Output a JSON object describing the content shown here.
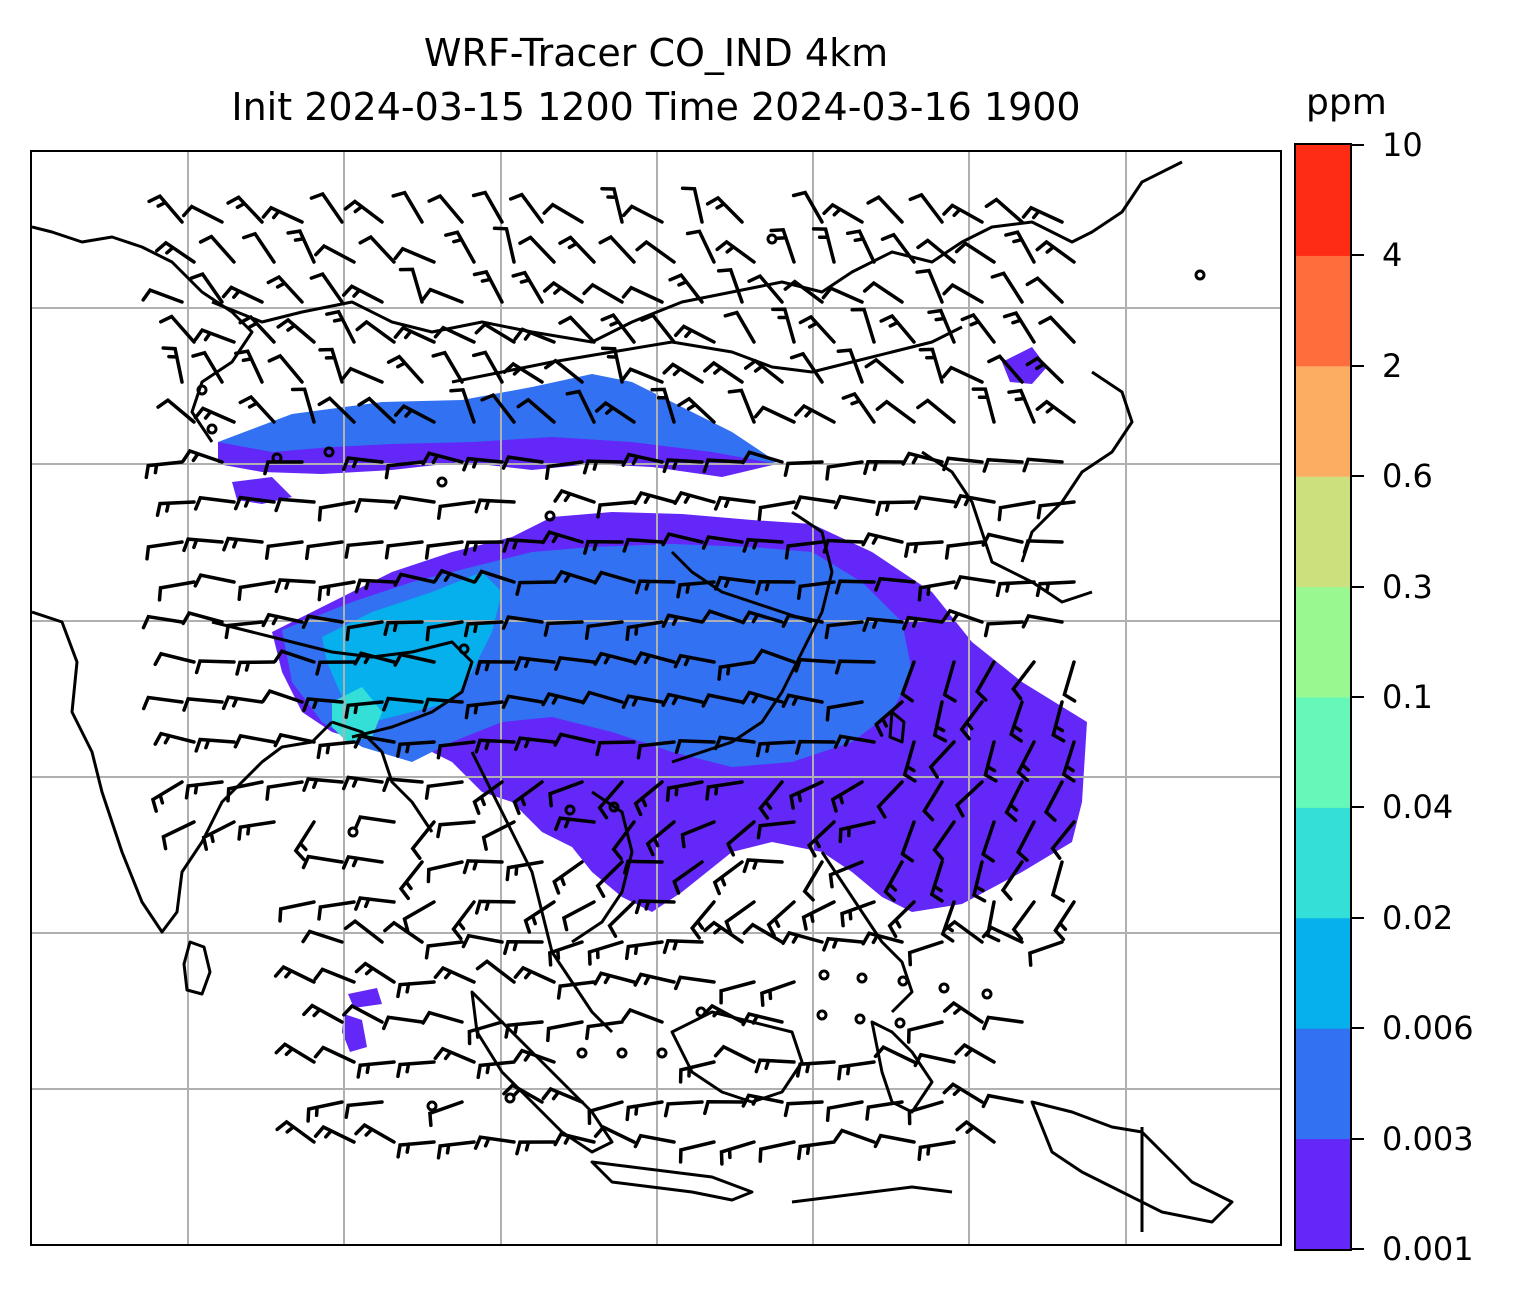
{
  "title_line1": "WRF-Tracer CO_IND 4km",
  "title_line2": "Init 2024-03-15 1200 Time 2024-03-16 1900",
  "colorbar": {
    "unit": "ppm",
    "levels": [
      "0.001",
      "0.003",
      "0.006",
      "0.02",
      "0.04",
      "0.1",
      "0.3",
      "0.6",
      "2",
      "4",
      "10"
    ],
    "colors": [
      "#6328f7",
      "#3371f3",
      "#05b0ec",
      "#34dfd7",
      "#65f8b8",
      "#9af890",
      "#cce07d",
      "#fdad61",
      "#fe6d3c",
      "#fe2b15"
    ]
  },
  "map": {
    "gridlines": true,
    "field": "CO_IND tracer concentration",
    "overlay": "wind barbs",
    "coastline_color": "#000000",
    "grid_color": "#b0b0b0"
  }
}
